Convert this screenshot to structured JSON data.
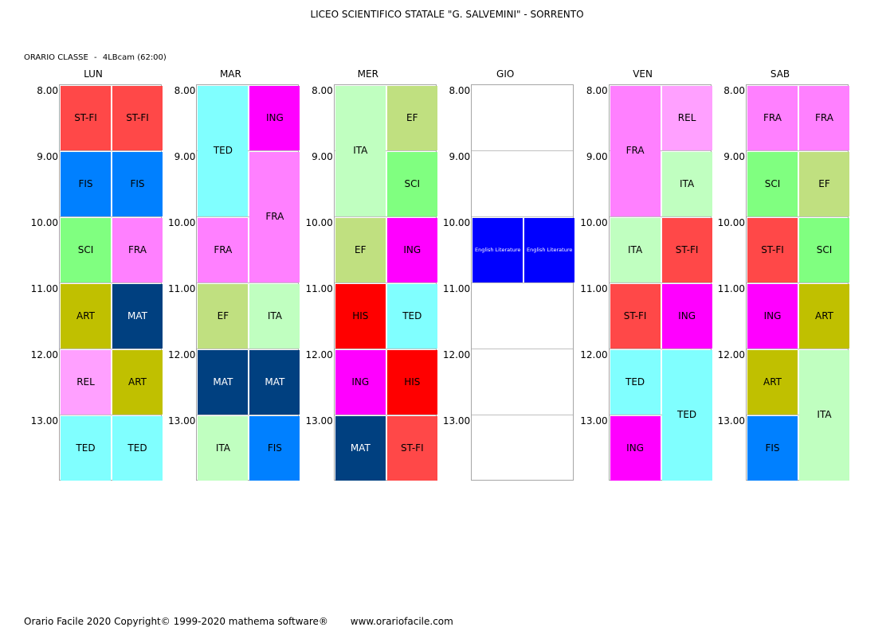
{
  "header": {
    "title": "LICEO SCIENTIFICO STATALE \"G. SALVEMINI\" - SORRENTO"
  },
  "class_info": {
    "label": "ORARIO CLASSE",
    "separator": "-",
    "class_name": "4LBcam",
    "hours": "(62:00)"
  },
  "times": [
    "8.00",
    "9.00",
    "10.00",
    "11.00",
    "12.00",
    "13.00"
  ],
  "colors": {
    "ST-FI": "#ff4848",
    "FIS": "#0080ff",
    "SCI": "#80ff80",
    "FRA": "#ff80ff",
    "ART": "#c0c000",
    "MAT": "#004080",
    "REL": "#ffa0ff",
    "TED": "#80ffff",
    "ING": "#ff00ff",
    "EF": "#c0e080",
    "ITA": "#c0ffc0",
    "HIS": "#ff0000",
    "English Literature": "#0000ff"
  },
  "days": [
    {
      "name": "LUN",
      "lessons": [
        {
          "subject": "ST-FI",
          "col": 0,
          "start": 0,
          "span": 1
        },
        {
          "subject": "ST-FI",
          "col": 1,
          "start": 0,
          "span": 1
        },
        {
          "subject": "FIS",
          "col": 0,
          "start": 1,
          "span": 1
        },
        {
          "subject": "FIS",
          "col": 1,
          "start": 1,
          "span": 1
        },
        {
          "subject": "SCI",
          "col": 0,
          "start": 2,
          "span": 1
        },
        {
          "subject": "FRA",
          "col": 1,
          "start": 2,
          "span": 1
        },
        {
          "subject": "ART",
          "col": 0,
          "start": 3,
          "span": 1
        },
        {
          "subject": "MAT",
          "col": 1,
          "start": 3,
          "span": 1
        },
        {
          "subject": "REL",
          "col": 0,
          "start": 4,
          "span": 1
        },
        {
          "subject": "ART",
          "col": 1,
          "start": 4,
          "span": 1
        },
        {
          "subject": "TED",
          "col": 0,
          "start": 5,
          "span": 1
        },
        {
          "subject": "TED",
          "col": 1,
          "start": 5,
          "span": 1
        }
      ]
    },
    {
      "name": "MAR",
      "lessons": [
        {
          "subject": "TED",
          "col": 0,
          "start": 0,
          "span": 2
        },
        {
          "subject": "ING",
          "col": 1,
          "start": 0,
          "span": 1
        },
        {
          "subject": "FRA",
          "col": 1,
          "start": 1,
          "span": 2
        },
        {
          "subject": "FRA",
          "col": 0,
          "start": 2,
          "span": 1
        },
        {
          "subject": "EF",
          "col": 0,
          "start": 3,
          "span": 1
        },
        {
          "subject": "ITA",
          "col": 1,
          "start": 3,
          "span": 1
        },
        {
          "subject": "MAT",
          "col": 0,
          "start": 4,
          "span": 1
        },
        {
          "subject": "MAT",
          "col": 1,
          "start": 4,
          "span": 1
        },
        {
          "subject": "ITA",
          "col": 0,
          "start": 5,
          "span": 1
        },
        {
          "subject": "FIS",
          "col": 1,
          "start": 5,
          "span": 1
        }
      ]
    },
    {
      "name": "MER",
      "lessons": [
        {
          "subject": "ITA",
          "col": 0,
          "start": 0,
          "span": 2
        },
        {
          "subject": "EF",
          "col": 1,
          "start": 0,
          "span": 1
        },
        {
          "subject": "SCI",
          "col": 1,
          "start": 1,
          "span": 1
        },
        {
          "subject": "EF",
          "col": 0,
          "start": 2,
          "span": 1
        },
        {
          "subject": "ING",
          "col": 1,
          "start": 2,
          "span": 1
        },
        {
          "subject": "HIS",
          "col": 0,
          "start": 3,
          "span": 1
        },
        {
          "subject": "TED",
          "col": 1,
          "start": 3,
          "span": 1
        },
        {
          "subject": "ING",
          "col": 0,
          "start": 4,
          "span": 1
        },
        {
          "subject": "HIS",
          "col": 1,
          "start": 4,
          "span": 1
        },
        {
          "subject": "MAT",
          "col": 0,
          "start": 5,
          "span": 1
        },
        {
          "subject": "ST-FI",
          "col": 1,
          "start": 5,
          "span": 1
        }
      ]
    },
    {
      "name": "GIO",
      "lessons": [
        {
          "subject": "English Literature",
          "col": 0,
          "start": 2,
          "span": 1
        },
        {
          "subject": "English Literature",
          "col": 1,
          "start": 2,
          "span": 1
        }
      ]
    },
    {
      "name": "VEN",
      "lessons": [
        {
          "subject": "FRA",
          "col": 0,
          "start": 0,
          "span": 2
        },
        {
          "subject": "REL",
          "col": 1,
          "start": 0,
          "span": 1
        },
        {
          "subject": "ITA",
          "col": 1,
          "start": 1,
          "span": 1
        },
        {
          "subject": "ITA",
          "col": 0,
          "start": 2,
          "span": 1
        },
        {
          "subject": "ST-FI",
          "col": 1,
          "start": 2,
          "span": 1
        },
        {
          "subject": "ST-FI",
          "col": 0,
          "start": 3,
          "span": 1
        },
        {
          "subject": "ING",
          "col": 1,
          "start": 3,
          "span": 1
        },
        {
          "subject": "TED",
          "col": 0,
          "start": 4,
          "span": 1
        },
        {
          "subject": "TED",
          "col": 1,
          "start": 4,
          "span": 2
        },
        {
          "subject": "ING",
          "col": 0,
          "start": 5,
          "span": 1
        }
      ]
    },
    {
      "name": "SAB",
      "lessons": [
        {
          "subject": "FRA",
          "col": 0,
          "start": 0,
          "span": 1
        },
        {
          "subject": "FRA",
          "col": 1,
          "start": 0,
          "span": 1
        },
        {
          "subject": "SCI",
          "col": 0,
          "start": 1,
          "span": 1
        },
        {
          "subject": "EF",
          "col": 1,
          "start": 1,
          "span": 1
        },
        {
          "subject": "ST-FI",
          "col": 0,
          "start": 2,
          "span": 1
        },
        {
          "subject": "SCI",
          "col": 1,
          "start": 2,
          "span": 1
        },
        {
          "subject": "ING",
          "col": 0,
          "start": 3,
          "span": 1
        },
        {
          "subject": "ART",
          "col": 1,
          "start": 3,
          "span": 1
        },
        {
          "subject": "ART",
          "col": 0,
          "start": 4,
          "span": 1
        },
        {
          "subject": "ITA",
          "col": 1,
          "start": 4,
          "span": 2
        },
        {
          "subject": "FIS",
          "col": 0,
          "start": 5,
          "span": 1
        }
      ]
    }
  ],
  "footer": {
    "copyright": "Orario Facile 2020  Copyright© 1999-2020 mathema software®",
    "website": "www.orariofacile.com"
  }
}
